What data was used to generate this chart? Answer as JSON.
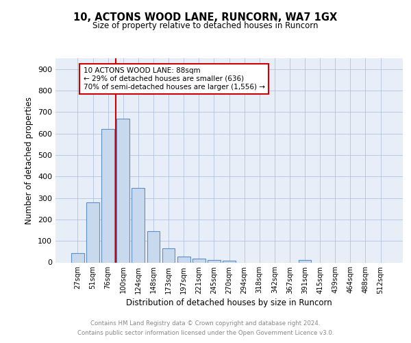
{
  "title": "10, ACTONS WOOD LANE, RUNCORN, WA7 1GX",
  "subtitle": "Size of property relative to detached houses in Runcorn",
  "xlabel": "Distribution of detached houses by size in Runcorn",
  "ylabel": "Number of detached properties",
  "bar_labels": [
    "27sqm",
    "51sqm",
    "76sqm",
    "100sqm",
    "124sqm",
    "148sqm",
    "173sqm",
    "197sqm",
    "221sqm",
    "245sqm",
    "270sqm",
    "294sqm",
    "318sqm",
    "342sqm",
    "367sqm",
    "391sqm",
    "415sqm",
    "439sqm",
    "464sqm",
    "488sqm",
    "512sqm"
  ],
  "bar_values": [
    42,
    280,
    622,
    668,
    348,
    145,
    65,
    28,
    18,
    12,
    8,
    0,
    0,
    0,
    0,
    10,
    0,
    0,
    0,
    0,
    0
  ],
  "bar_color": "#c9d9ed",
  "bar_edge_color": "#5b8fc9",
  "annotation_title": "10 ACTONS WOOD LANE: 88sqm",
  "annotation_line1": "← 29% of detached houses are smaller (636)",
  "annotation_line2": "70% of semi-detached houses are larger (1,556) →",
  "annotation_box_color": "#ffffff",
  "annotation_border_color": "#cc0000",
  "vline_color": "#cc0000",
  "ylim": [
    0,
    950
  ],
  "yticks": [
    0,
    100,
    200,
    300,
    400,
    500,
    600,
    700,
    800,
    900
  ],
  "grid_color": "#b0c4de",
  "background_color": "#e8eef7",
  "footer_line1": "Contains HM Land Registry data © Crown copyright and database right 2024.",
  "footer_line2": "Contains public sector information licensed under the Open Government Licence v3.0."
}
